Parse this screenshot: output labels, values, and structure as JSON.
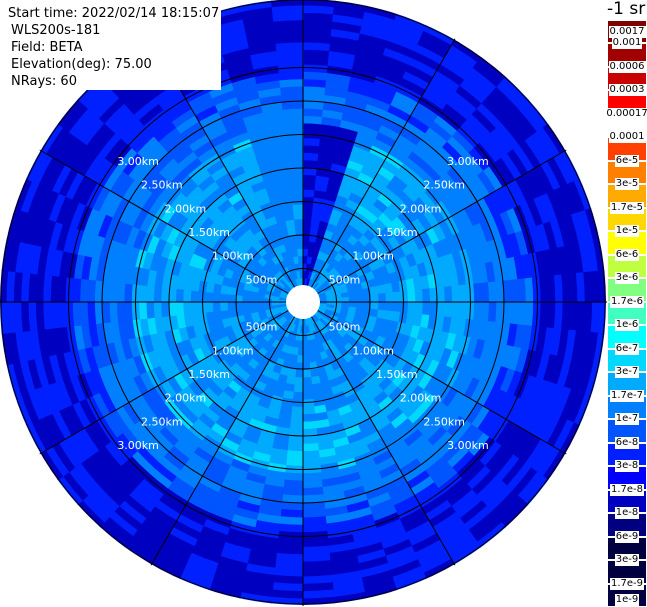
{
  "info": {
    "start_time": "Start time: 2022/02/14 18:15:07",
    "instrument": "WLS200s-181",
    "field": "Field: BETA",
    "elevation": "Elevation(deg): 75.00",
    "nrays": "NRays: 60"
  },
  "colorbar": {
    "unit": "-1 sr",
    "labels": [
      "0.0017",
      "0.001",
      "0.0006",
      "0.0003",
      "0.00017",
      "0.0001",
      "6e-5",
      "3e-5",
      "1.7e-5",
      "1e-5",
      "6e-6",
      "3e-6",
      "1.7e-6",
      "1e-6",
      "6e-7",
      "3e-7",
      "1.7e-7",
      "1e-7",
      "6e-8",
      "3e-8",
      "1.7e-8",
      "1e-8",
      "6e-9",
      "3e-9",
      "1.7e-9",
      "1e-9"
    ],
    "colors": [
      "#800000",
      "#a00000",
      "#c80000",
      "#ff0000",
      "#ffffff",
      "#ff4000",
      "#ff7f00",
      "#ffaa00",
      "#ffd700",
      "#ffff00",
      "#c0ff40",
      "#80ff80",
      "#40ffc0",
      "#00ffff",
      "#00d8ff",
      "#00aaff",
      "#0080ff",
      "#0055ff",
      "#0020ff",
      "#0000ff",
      "#0000c0",
      "#000080",
      "#000040"
    ]
  },
  "chart_data": {
    "type": "ppi",
    "field": "BETA",
    "elevation_deg": 75.0,
    "nrays": 60,
    "range_rings_km": [
      0.5,
      1.0,
      1.5,
      2.0,
      2.5,
      3.0,
      3.5
    ],
    "ring_labels": [
      "500m",
      "1.00km",
      "1.50km",
      "2.00km",
      "2.50km",
      "3.00km"
    ],
    "spokes_deg": [
      0,
      30,
      60,
      90,
      120,
      150,
      180,
      210,
      240,
      270,
      300,
      330
    ],
    "dominant_range_bands_km": [
      {
        "from": 0.0,
        "to": 0.5,
        "level": "1e-7"
      },
      {
        "from": 0.5,
        "to": 1.0,
        "level": "6e-8"
      },
      {
        "from": 1.0,
        "to": 2.5,
        "level": "1e-7"
      },
      {
        "from": 2.5,
        "to": 3.2,
        "level": "3e-8"
      },
      {
        "from": 3.2,
        "to": 3.5,
        "level": "1e-8"
      }
    ],
    "notable_sector": {
      "azimuth_from": 0,
      "azimuth_to": 15,
      "level": "1e-8"
    }
  }
}
